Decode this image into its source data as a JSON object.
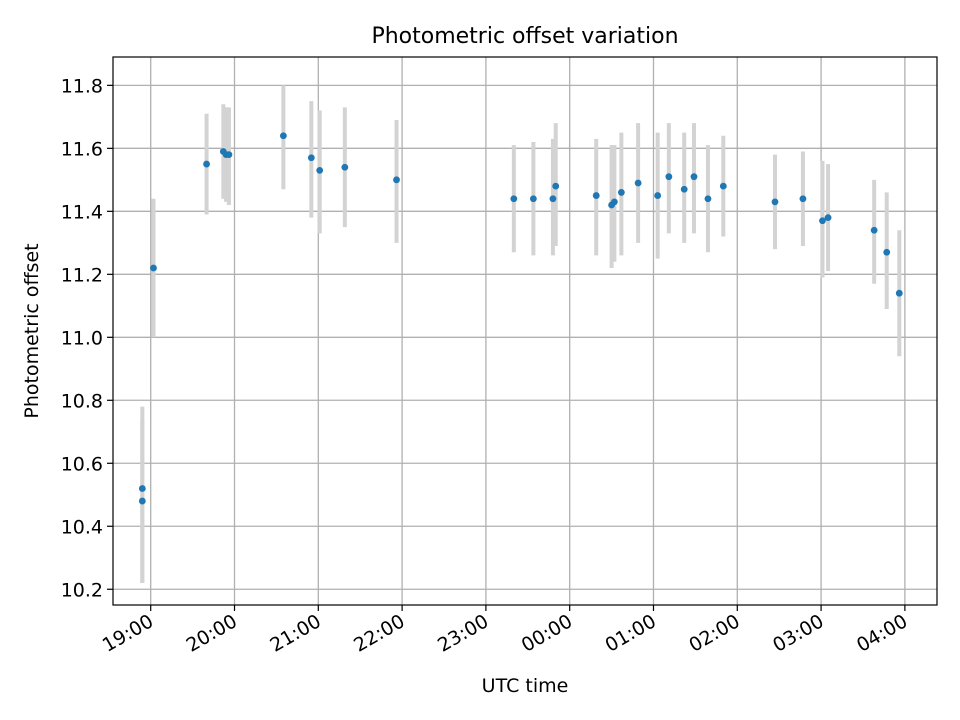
{
  "chart_data": {
    "type": "scatter",
    "title": "Photometric offset variation",
    "xlabel": "UTC time",
    "ylabel": "Photometric offset",
    "xlim": [
      "18:33",
      "04:23"
    ],
    "ylim": [
      10.15,
      11.89
    ],
    "grid": true,
    "x_ticks": [
      "19:00",
      "20:00",
      "21:00",
      "22:00",
      "23:00",
      "00:00",
      "01:00",
      "02:00",
      "03:00",
      "04:00"
    ],
    "y_ticks": [
      "10.2",
      "10.4",
      "10.6",
      "10.8",
      "11.0",
      "11.2",
      "11.4",
      "11.6",
      "11.8"
    ],
    "colors": {
      "point": "#1f77b4",
      "errorbar": "#d3d3d3",
      "grid": "#b0b0b0"
    },
    "points": [
      {
        "t": "18:54",
        "y": 10.52,
        "lo": 10.22,
        "hi": 10.78
      },
      {
        "t": "18:54",
        "y": 10.48,
        "lo": 10.22,
        "hi": 10.74
      },
      {
        "t": "19:02",
        "y": 11.22,
        "lo": 11.0,
        "hi": 11.44
      },
      {
        "t": "19:40",
        "y": 11.55,
        "lo": 11.39,
        "hi": 11.71
      },
      {
        "t": "19:52",
        "y": 11.59,
        "lo": 11.44,
        "hi": 11.74
      },
      {
        "t": "19:54",
        "y": 11.58,
        "lo": 11.43,
        "hi": 11.73
      },
      {
        "t": "19:56",
        "y": 11.58,
        "lo": 11.42,
        "hi": 11.73
      },
      {
        "t": "20:35",
        "y": 11.64,
        "lo": 11.47,
        "hi": 11.8
      },
      {
        "t": "20:55",
        "y": 11.57,
        "lo": 11.38,
        "hi": 11.75
      },
      {
        "t": "21:01",
        "y": 11.53,
        "lo": 11.33,
        "hi": 11.72
      },
      {
        "t": "21:19",
        "y": 11.54,
        "lo": 11.35,
        "hi": 11.73
      },
      {
        "t": "21:56",
        "y": 11.5,
        "lo": 11.3,
        "hi": 11.69
      },
      {
        "t": "23:20",
        "y": 11.44,
        "lo": 11.27,
        "hi": 11.61
      },
      {
        "t": "23:34",
        "y": 11.44,
        "lo": 11.26,
        "hi": 11.62
      },
      {
        "t": "23:48",
        "y": 11.44,
        "lo": 11.26,
        "hi": 11.63
      },
      {
        "t": "23:50",
        "y": 11.48,
        "lo": 11.29,
        "hi": 11.68
      },
      {
        "t": "00:19",
        "y": 11.45,
        "lo": 11.26,
        "hi": 11.63
      },
      {
        "t": "00:30",
        "y": 11.42,
        "lo": 11.22,
        "hi": 11.61
      },
      {
        "t": "00:32",
        "y": 11.43,
        "lo": 11.24,
        "hi": 11.61
      },
      {
        "t": "00:37",
        "y": 11.46,
        "lo": 11.26,
        "hi": 11.65
      },
      {
        "t": "00:49",
        "y": 11.49,
        "lo": 11.3,
        "hi": 11.68
      },
      {
        "t": "01:03",
        "y": 11.45,
        "lo": 11.25,
        "hi": 11.65
      },
      {
        "t": "01:11",
        "y": 11.51,
        "lo": 11.33,
        "hi": 11.68
      },
      {
        "t": "01:22",
        "y": 11.47,
        "lo": 11.3,
        "hi": 11.65
      },
      {
        "t": "01:29",
        "y": 11.51,
        "lo": 11.33,
        "hi": 11.68
      },
      {
        "t": "01:39",
        "y": 11.44,
        "lo": 11.27,
        "hi": 11.61
      },
      {
        "t": "01:50",
        "y": 11.48,
        "lo": 11.32,
        "hi": 11.64
      },
      {
        "t": "02:27",
        "y": 11.43,
        "lo": 11.28,
        "hi": 11.58
      },
      {
        "t": "02:47",
        "y": 11.44,
        "lo": 11.29,
        "hi": 11.59
      },
      {
        "t": "03:01",
        "y": 11.37,
        "lo": 11.19,
        "hi": 11.56
      },
      {
        "t": "03:05",
        "y": 11.38,
        "lo": 11.21,
        "hi": 11.55
      },
      {
        "t": "03:38",
        "y": 11.34,
        "lo": 11.17,
        "hi": 11.5
      },
      {
        "t": "03:47",
        "y": 11.27,
        "lo": 11.09,
        "hi": 11.46
      },
      {
        "t": "03:56",
        "y": 11.14,
        "lo": 10.94,
        "hi": 11.34
      }
    ]
  }
}
